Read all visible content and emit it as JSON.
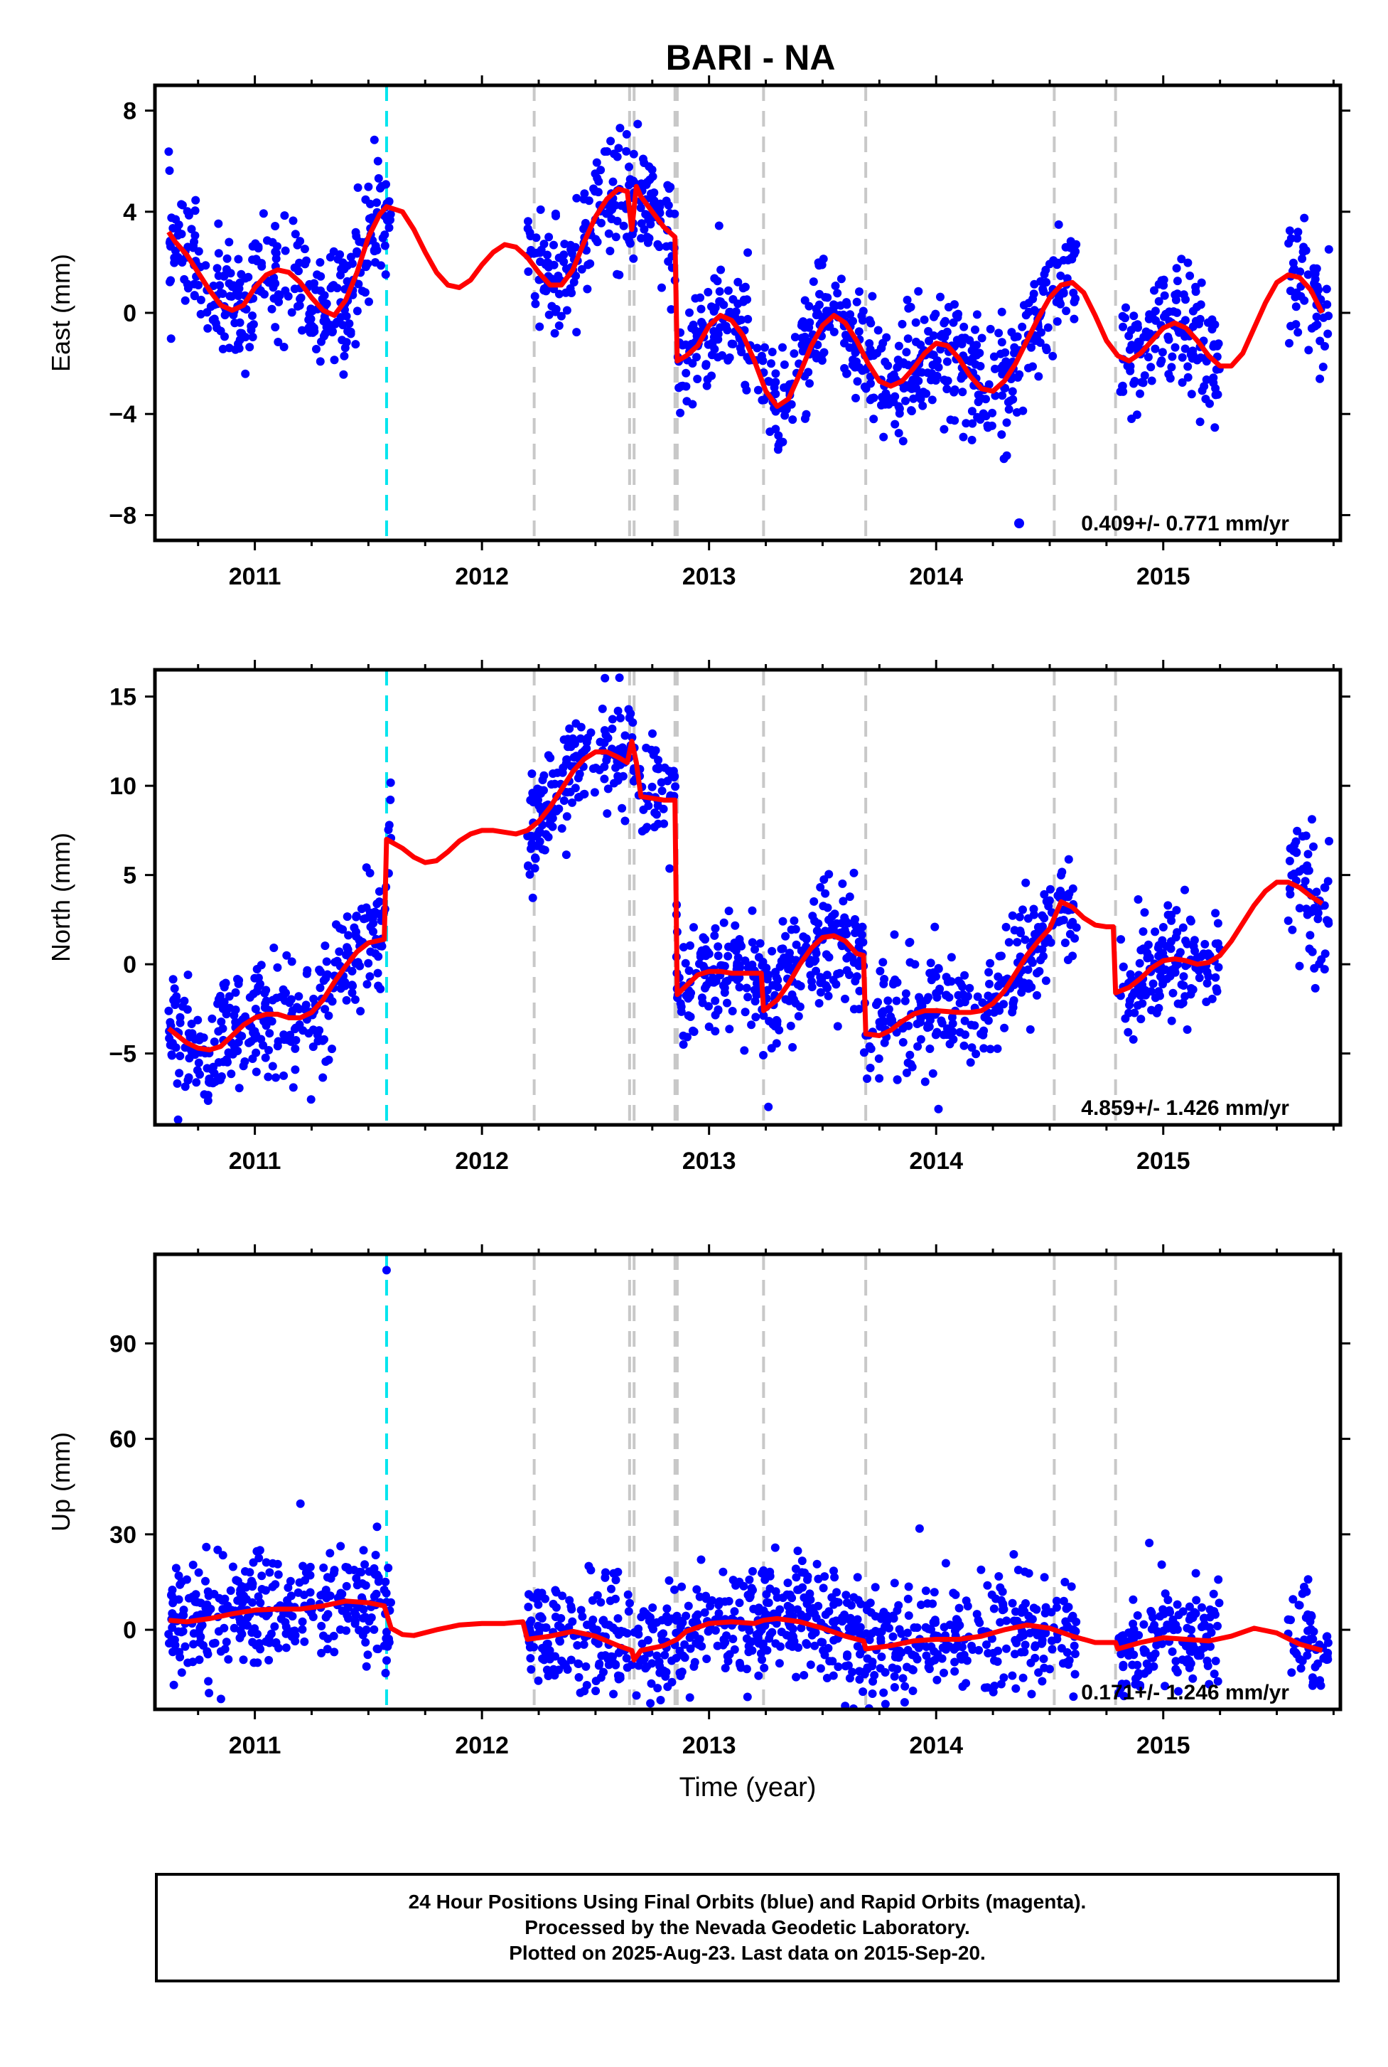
{
  "title": "BARI - NA",
  "colors": {
    "points": "#0000ff",
    "model": "#ff0000",
    "cyan_line": "#00e5ee",
    "gray_line": "#c8c8c8",
    "frame": "#000000"
  },
  "footer": {
    "line1": "24 Hour Positions Using Final Orbits (blue) and Rapid Orbits (magenta).",
    "line2": "Processed by the Nevada Geodetic Laboratory.",
    "line3": "Plotted on 2025-Aug-23. Last data on 2015-Sep-20."
  },
  "chart_data": [
    {
      "type": "scatter",
      "panel": "east",
      "title": "BARI - NA",
      "xlabel": "",
      "ylabel": "East (mm)",
      "xlim": [
        2010.56,
        2015.78
      ],
      "ylim": [
        -9.0,
        9.0
      ],
      "xticks": [
        2011,
        2012,
        2013,
        2014,
        2015
      ],
      "yticks": [
        -8,
        -4,
        0,
        4,
        8
      ],
      "rate_label": "0.409+/- 0.771 mm/yr",
      "data_segments": [
        [
          2010.62,
          2011.6
        ],
        [
          2012.2,
          2012.87
        ],
        [
          2012.87,
          2014.52
        ],
        [
          2014.53,
          2014.62
        ],
        [
          2014.8,
          2015.25
        ],
        [
          2015.55,
          2015.73
        ]
      ],
      "model_curve": [
        [
          2010.62,
          3.2
        ],
        [
          2010.65,
          2.8
        ],
        [
          2010.7,
          2.3
        ],
        [
          2010.75,
          1.6
        ],
        [
          2010.8,
          0.9
        ],
        [
          2010.85,
          0.3
        ],
        [
          2010.9,
          0.1
        ],
        [
          2010.95,
          0.3
        ],
        [
          2011.0,
          1.0
        ],
        [
          2011.05,
          1.5
        ],
        [
          2011.1,
          1.7
        ],
        [
          2011.15,
          1.6
        ],
        [
          2011.2,
          1.2
        ],
        [
          2011.25,
          0.6
        ],
        [
          2011.3,
          0.1
        ],
        [
          2011.35,
          -0.1
        ],
        [
          2011.4,
          0.5
        ],
        [
          2011.45,
          1.6
        ],
        [
          2011.5,
          3.0
        ],
        [
          2011.55,
          3.9
        ],
        [
          2011.58,
          4.2
        ],
        [
          2011.65,
          4.0
        ],
        [
          2011.7,
          3.3
        ],
        [
          2011.75,
          2.4
        ],
        [
          2011.8,
          1.6
        ],
        [
          2011.85,
          1.1
        ],
        [
          2011.9,
          1.0
        ],
        [
          2011.95,
          1.3
        ],
        [
          2012.0,
          1.9
        ],
        [
          2012.05,
          2.4
        ],
        [
          2012.1,
          2.7
        ],
        [
          2012.15,
          2.6
        ],
        [
          2012.2,
          2.2
        ],
        [
          2012.25,
          1.6
        ],
        [
          2012.3,
          1.1
        ],
        [
          2012.35,
          1.1
        ],
        [
          2012.4,
          1.7
        ],
        [
          2012.45,
          2.8
        ],
        [
          2012.5,
          3.8
        ],
        [
          2012.55,
          4.5
        ],
        [
          2012.6,
          4.9
        ],
        [
          2012.64,
          4.8
        ],
        [
          2012.66,
          3.3
        ],
        [
          2012.68,
          5.0
        ],
        [
          2012.7,
          4.6
        ],
        [
          2012.75,
          4.0
        ],
        [
          2012.8,
          3.4
        ],
        [
          2012.85,
          3.0
        ],
        [
          2012.86,
          -1.9
        ],
        [
          2012.9,
          -1.7
        ],
        [
          2012.95,
          -1.3
        ],
        [
          2013.0,
          -0.5
        ],
        [
          2013.05,
          -0.1
        ],
        [
          2013.1,
          -0.3
        ],
        [
          2013.15,
          -0.9
        ],
        [
          2013.2,
          -1.9
        ],
        [
          2013.25,
          -3.1
        ],
        [
          2013.3,
          -3.7
        ],
        [
          2013.35,
          -3.4
        ],
        [
          2013.4,
          -2.4
        ],
        [
          2013.45,
          -1.3
        ],
        [
          2013.5,
          -0.5
        ],
        [
          2013.55,
          -0.1
        ],
        [
          2013.6,
          -0.4
        ],
        [
          2013.65,
          -1.1
        ],
        [
          2013.7,
          -2.0
        ],
        [
          2013.75,
          -2.7
        ],
        [
          2013.8,
          -2.9
        ],
        [
          2013.85,
          -2.7
        ],
        [
          2013.9,
          -2.2
        ],
        [
          2013.95,
          -1.6
        ],
        [
          2014.0,
          -1.2
        ],
        [
          2014.05,
          -1.3
        ],
        [
          2014.1,
          -1.8
        ],
        [
          2014.15,
          -2.5
        ],
        [
          2014.2,
          -3.0
        ],
        [
          2014.25,
          -3.1
        ],
        [
          2014.3,
          -2.7
        ],
        [
          2014.35,
          -2.0
        ],
        [
          2014.4,
          -1.1
        ],
        [
          2014.45,
          -0.2
        ],
        [
          2014.5,
          0.6
        ],
        [
          2014.55,
          1.1
        ],
        [
          2014.6,
          1.2
        ],
        [
          2014.65,
          0.8
        ],
        [
          2014.7,
          -0.1
        ],
        [
          2014.75,
          -1.1
        ],
        [
          2014.8,
          -1.7
        ],
        [
          2014.85,
          -1.9
        ],
        [
          2014.9,
          -1.6
        ],
        [
          2014.95,
          -1.1
        ],
        [
          2015.0,
          -0.6
        ],
        [
          2015.05,
          -0.4
        ],
        [
          2015.1,
          -0.6
        ],
        [
          2015.15,
          -1.1
        ],
        [
          2015.2,
          -1.7
        ],
        [
          2015.25,
          -2.1
        ],
        [
          2015.3,
          -2.1
        ],
        [
          2015.35,
          -1.6
        ],
        [
          2015.4,
          -0.6
        ],
        [
          2015.45,
          0.4
        ],
        [
          2015.5,
          1.2
        ],
        [
          2015.55,
          1.5
        ],
        [
          2015.6,
          1.4
        ],
        [
          2015.65,
          0.9
        ],
        [
          2015.7,
          0.0
        ]
      ]
    },
    {
      "type": "scatter",
      "panel": "north",
      "xlabel": "",
      "ylabel": "North (mm)",
      "xlim": [
        2010.56,
        2015.78
      ],
      "ylim": [
        -9.0,
        16.5
      ],
      "xticks": [
        2011,
        2012,
        2013,
        2014,
        2015
      ],
      "yticks": [
        -5,
        0,
        5,
        10,
        15
      ],
      "rate_label": "4.859+/- 1.426 mm/yr",
      "data_segments": [
        [
          2010.62,
          2011.6
        ],
        [
          2012.2,
          2012.87
        ],
        [
          2012.87,
          2014.52
        ],
        [
          2014.53,
          2014.62
        ],
        [
          2014.8,
          2015.25
        ],
        [
          2015.55,
          2015.73
        ]
      ],
      "model_curve": [
        [
          2010.62,
          -3.6
        ],
        [
          2010.65,
          -3.9
        ],
        [
          2010.7,
          -4.4
        ],
        [
          2010.75,
          -4.7
        ],
        [
          2010.8,
          -4.8
        ],
        [
          2010.85,
          -4.6
        ],
        [
          2010.9,
          -4.0
        ],
        [
          2010.95,
          -3.4
        ],
        [
          2011.0,
          -3.0
        ],
        [
          2011.05,
          -2.8
        ],
        [
          2011.1,
          -2.8
        ],
        [
          2011.15,
          -3.0
        ],
        [
          2011.2,
          -3.0
        ],
        [
          2011.25,
          -2.7
        ],
        [
          2011.3,
          -2.0
        ],
        [
          2011.35,
          -1.0
        ],
        [
          2011.4,
          -0.1
        ],
        [
          2011.45,
          0.7
        ],
        [
          2011.5,
          1.2
        ],
        [
          2011.57,
          1.4
        ],
        [
          2011.58,
          7.0
        ],
        [
          2011.65,
          6.5
        ],
        [
          2011.7,
          6.0
        ],
        [
          2011.75,
          5.7
        ],
        [
          2011.8,
          5.8
        ],
        [
          2011.85,
          6.3
        ],
        [
          2011.9,
          6.9
        ],
        [
          2011.95,
          7.3
        ],
        [
          2012.0,
          7.5
        ],
        [
          2012.05,
          7.5
        ],
        [
          2012.1,
          7.4
        ],
        [
          2012.15,
          7.3
        ],
        [
          2012.2,
          7.5
        ],
        [
          2012.25,
          8.0
        ],
        [
          2012.3,
          8.8
        ],
        [
          2012.35,
          9.8
        ],
        [
          2012.4,
          10.8
        ],
        [
          2012.45,
          11.5
        ],
        [
          2012.5,
          11.9
        ],
        [
          2012.55,
          11.9
        ],
        [
          2012.6,
          11.6
        ],
        [
          2012.64,
          11.3
        ],
        [
          2012.66,
          12.5
        ],
        [
          2012.68,
          11.3
        ],
        [
          2012.7,
          9.4
        ],
        [
          2012.75,
          9.3
        ],
        [
          2012.8,
          9.2
        ],
        [
          2012.85,
          9.2
        ],
        [
          2012.86,
          -1.7
        ],
        [
          2012.9,
          -1.2
        ],
        [
          2012.95,
          -0.6
        ],
        [
          2013.0,
          -0.4
        ],
        [
          2013.05,
          -0.4
        ],
        [
          2013.1,
          -0.5
        ],
        [
          2013.15,
          -0.5
        ],
        [
          2013.2,
          -0.5
        ],
        [
          2013.23,
          -0.5
        ],
        [
          2013.24,
          -2.6
        ],
        [
          2013.3,
          -2.0
        ],
        [
          2013.35,
          -1.1
        ],
        [
          2013.4,
          0.0
        ],
        [
          2013.45,
          0.9
        ],
        [
          2013.5,
          1.5
        ],
        [
          2013.55,
          1.6
        ],
        [
          2013.6,
          1.3
        ],
        [
          2013.65,
          0.6
        ],
        [
          2013.68,
          0.5
        ],
        [
          2013.69,
          -3.9
        ],
        [
          2013.75,
          -4.0
        ],
        [
          2013.8,
          -3.7
        ],
        [
          2013.85,
          -3.2
        ],
        [
          2013.9,
          -2.8
        ],
        [
          2013.95,
          -2.6
        ],
        [
          2014.0,
          -2.6
        ],
        [
          2014.1,
          -2.7
        ],
        [
          2014.15,
          -2.7
        ],
        [
          2014.2,
          -2.6
        ],
        [
          2014.25,
          -2.2
        ],
        [
          2014.3,
          -1.5
        ],
        [
          2014.35,
          -0.5
        ],
        [
          2014.4,
          0.5
        ],
        [
          2014.45,
          1.3
        ],
        [
          2014.5,
          2.0
        ],
        [
          2014.55,
          3.5
        ],
        [
          2014.6,
          3.2
        ],
        [
          2014.65,
          2.6
        ],
        [
          2014.7,
          2.2
        ],
        [
          2014.75,
          2.1
        ],
        [
          2014.78,
          2.1
        ],
        [
          2014.79,
          -1.6
        ],
        [
          2014.85,
          -1.3
        ],
        [
          2014.9,
          -0.8
        ],
        [
          2014.95,
          -0.2
        ],
        [
          2015.0,
          0.2
        ],
        [
          2015.05,
          0.3
        ],
        [
          2015.1,
          0.2
        ],
        [
          2015.15,
          0.0
        ],
        [
          2015.2,
          0.1
        ],
        [
          2015.25,
          0.5
        ],
        [
          2015.3,
          1.3
        ],
        [
          2015.35,
          2.3
        ],
        [
          2015.4,
          3.3
        ],
        [
          2015.45,
          4.1
        ],
        [
          2015.5,
          4.6
        ],
        [
          2015.55,
          4.6
        ],
        [
          2015.6,
          4.3
        ],
        [
          2015.65,
          3.8
        ],
        [
          2015.7,
          3.4
        ]
      ]
    },
    {
      "type": "scatter",
      "panel": "up",
      "xlabel": "Time (year)",
      "ylabel": "Up (mm)",
      "xlim": [
        2010.56,
        2015.78
      ],
      "ylim": [
        -25,
        118
      ],
      "xticks": [
        2011,
        2012,
        2013,
        2014,
        2015
      ],
      "yticks": [
        0,
        30,
        60,
        90
      ],
      "rate_label": "0.171+/- 1.246 mm/yr",
      "data_segments": [
        [
          2010.62,
          2011.6
        ],
        [
          2012.2,
          2012.87
        ],
        [
          2012.87,
          2014.52
        ],
        [
          2014.53,
          2014.62
        ],
        [
          2014.8,
          2015.25
        ],
        [
          2015.55,
          2015.73
        ]
      ],
      "outlier": [
        2011.58,
        113
      ],
      "model_curve": [
        [
          2010.62,
          3.0
        ],
        [
          2010.7,
          2.5
        ],
        [
          2010.8,
          3.5
        ],
        [
          2010.9,
          5.0
        ],
        [
          2011.0,
          6.2
        ],
        [
          2011.1,
          6.5
        ],
        [
          2011.2,
          6.5
        ],
        [
          2011.3,
          7.5
        ],
        [
          2011.4,
          9.0
        ],
        [
          2011.5,
          8.5
        ],
        [
          2011.57,
          7.5
        ],
        [
          2011.6,
          0.5
        ],
        [
          2011.65,
          -1.5
        ],
        [
          2011.7,
          -1.8
        ],
        [
          2011.8,
          0.0
        ],
        [
          2011.9,
          1.5
        ],
        [
          2012.0,
          2.0
        ],
        [
          2012.1,
          2.0
        ],
        [
          2012.18,
          2.5
        ],
        [
          2012.2,
          -3.0
        ],
        [
          2012.3,
          -2.0
        ],
        [
          2012.4,
          -0.5
        ],
        [
          2012.5,
          -2.0
        ],
        [
          2012.6,
          -5.0
        ],
        [
          2012.66,
          -6.5
        ],
        [
          2012.67,
          -9.5
        ],
        [
          2012.7,
          -6.5
        ],
        [
          2012.8,
          -5.0
        ],
        [
          2012.86,
          -3.0
        ],
        [
          2012.9,
          -0.5
        ],
        [
          2013.0,
          2.0
        ],
        [
          2013.1,
          2.5
        ],
        [
          2013.2,
          2.0
        ],
        [
          2013.24,
          3.0
        ],
        [
          2013.3,
          3.5
        ],
        [
          2013.4,
          2.5
        ],
        [
          2013.5,
          0.5
        ],
        [
          2013.6,
          -2.0
        ],
        [
          2013.68,
          -3.5
        ],
        [
          2013.69,
          -6.0
        ],
        [
          2013.8,
          -5.0
        ],
        [
          2013.9,
          -3.5
        ],
        [
          2014.0,
          -3.0
        ],
        [
          2014.1,
          -3.0
        ],
        [
          2014.2,
          -2.0
        ],
        [
          2014.3,
          0.0
        ],
        [
          2014.4,
          1.5
        ],
        [
          2014.5,
          0.5
        ],
        [
          2014.6,
          -2.0
        ],
        [
          2014.7,
          -4.0
        ],
        [
          2014.79,
          -4.0
        ],
        [
          2014.8,
          -6.0
        ],
        [
          2014.9,
          -4.0
        ],
        [
          2015.0,
          -2.5
        ],
        [
          2015.1,
          -3.0
        ],
        [
          2015.2,
          -3.5
        ],
        [
          2015.3,
          -2.0
        ],
        [
          2015.4,
          0.5
        ],
        [
          2015.5,
          -1.0
        ],
        [
          2015.6,
          -4.5
        ],
        [
          2015.7,
          -6.5
        ]
      ]
    }
  ],
  "offsets": {
    "cyan_years": [
      2011.58
    ],
    "gray_years": [
      2012.23,
      2012.65,
      2012.67,
      2012.85,
      2012.86,
      2013.24,
      2013.69,
      2014.52,
      2014.79
    ]
  }
}
